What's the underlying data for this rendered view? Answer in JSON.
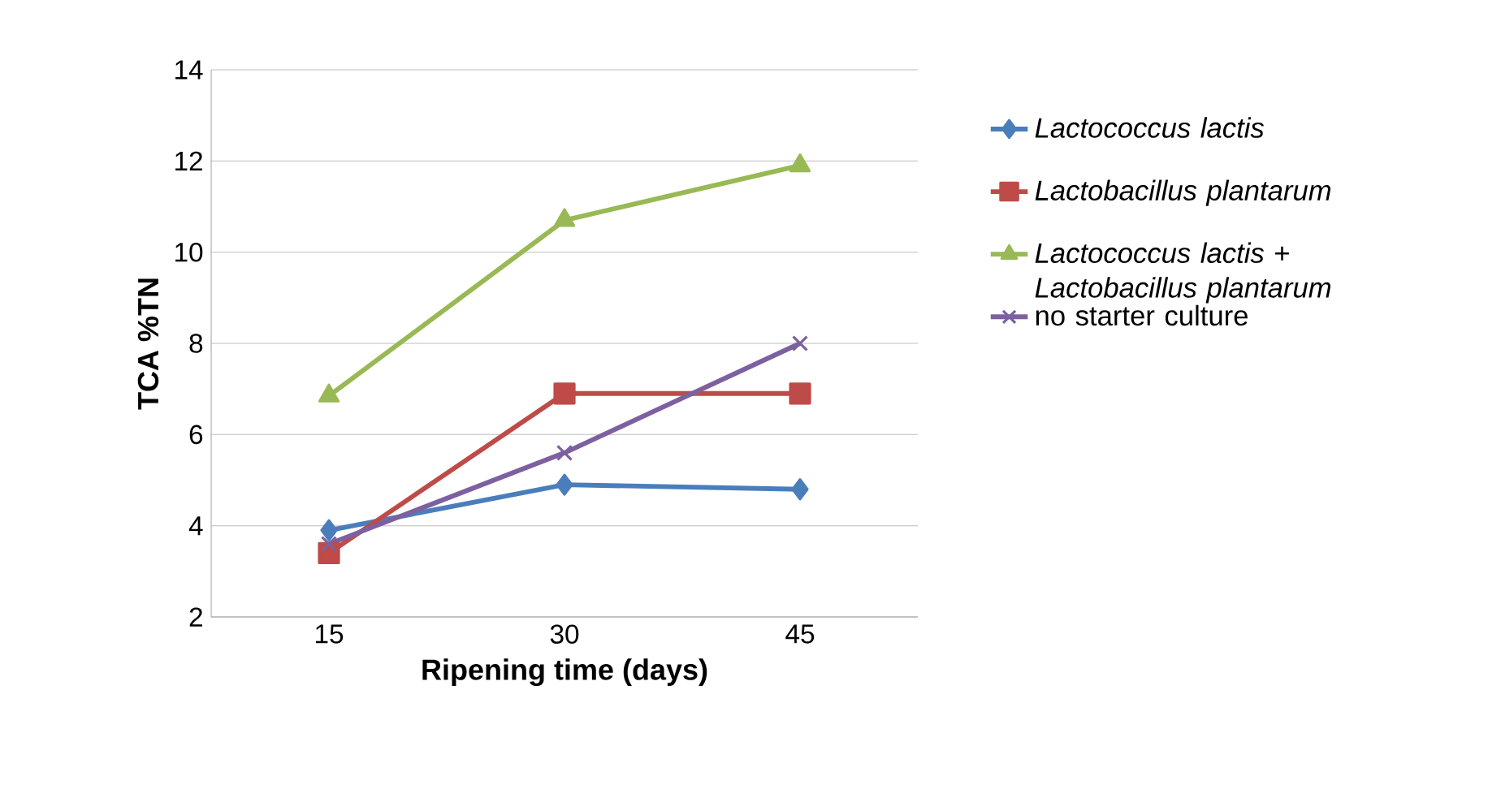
{
  "chart_data": {
    "type": "line",
    "xlabel": "Ripening time (days)",
    "ylabel": "TCA %TN",
    "categories": [
      "15",
      "30",
      "45"
    ],
    "series": [
      {
        "name": "*Lactococcus lactis*",
        "color": "#4a7ebb",
        "marker": "diamond",
        "values": [
          3.9,
          4.9,
          4.8
        ]
      },
      {
        "name": "*Lactobacillus plantarum*",
        "color": "#be4b48",
        "marker": "square",
        "values": [
          3.4,
          6.9,
          6.9
        ]
      },
      {
        "name": "*Lactococcus lactis* + *Lactobacillus plantarum*",
        "color": "#98b954",
        "marker": "triangle",
        "values": [
          6.85,
          10.7,
          11.9
        ]
      },
      {
        "name": "no starter culture",
        "color": "#7d60a0",
        "marker": "cross",
        "values": [
          3.6,
          5.6,
          8.0
        ]
      }
    ],
    "ylim": [
      2,
      14
    ],
    "yticks": [
      2,
      4,
      6,
      8,
      10,
      12,
      14
    ],
    "grid": "y",
    "legend": "right"
  }
}
